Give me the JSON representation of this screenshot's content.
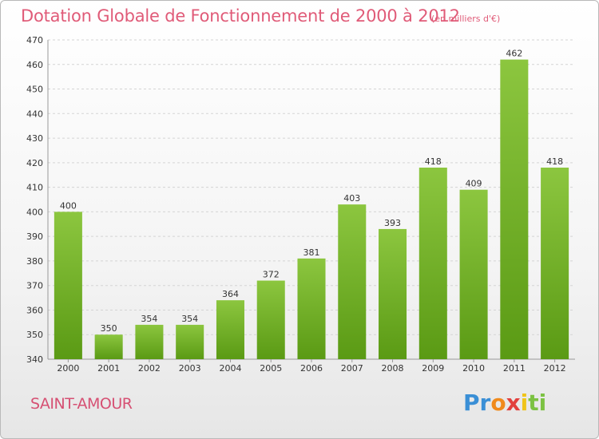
{
  "header": {
    "title": "Dotation Globale de Fonctionnement de 2000 à 2012",
    "unit": "(en milliers d'€)"
  },
  "footer": {
    "commune": "SAINT-AMOUR",
    "logo": [
      "Pr",
      "o",
      "x",
      "i",
      "ti"
    ]
  },
  "colors": {
    "bar_top": "#8cc63f",
    "bar_bottom": "#5a9a14",
    "title": "#e05b78"
  },
  "chart_data": {
    "type": "bar",
    "title": "Dotation Globale de Fonctionnement de 2000 à 2012",
    "subtitle": "(en milliers d'€)",
    "categories": [
      "2000",
      "2001",
      "2002",
      "2003",
      "2004",
      "2005",
      "2006",
      "2007",
      "2008",
      "2009",
      "2010",
      "2011",
      "2012"
    ],
    "values": [
      400,
      350,
      354,
      354,
      364,
      372,
      381,
      403,
      393,
      418,
      409,
      462,
      418
    ],
    "xlabel": "",
    "ylabel": "",
    "ylim": [
      340,
      470
    ],
    "yticks": [
      340,
      350,
      360,
      370,
      380,
      390,
      400,
      410,
      420,
      430,
      440,
      450,
      460,
      470
    ],
    "grid": true
  }
}
